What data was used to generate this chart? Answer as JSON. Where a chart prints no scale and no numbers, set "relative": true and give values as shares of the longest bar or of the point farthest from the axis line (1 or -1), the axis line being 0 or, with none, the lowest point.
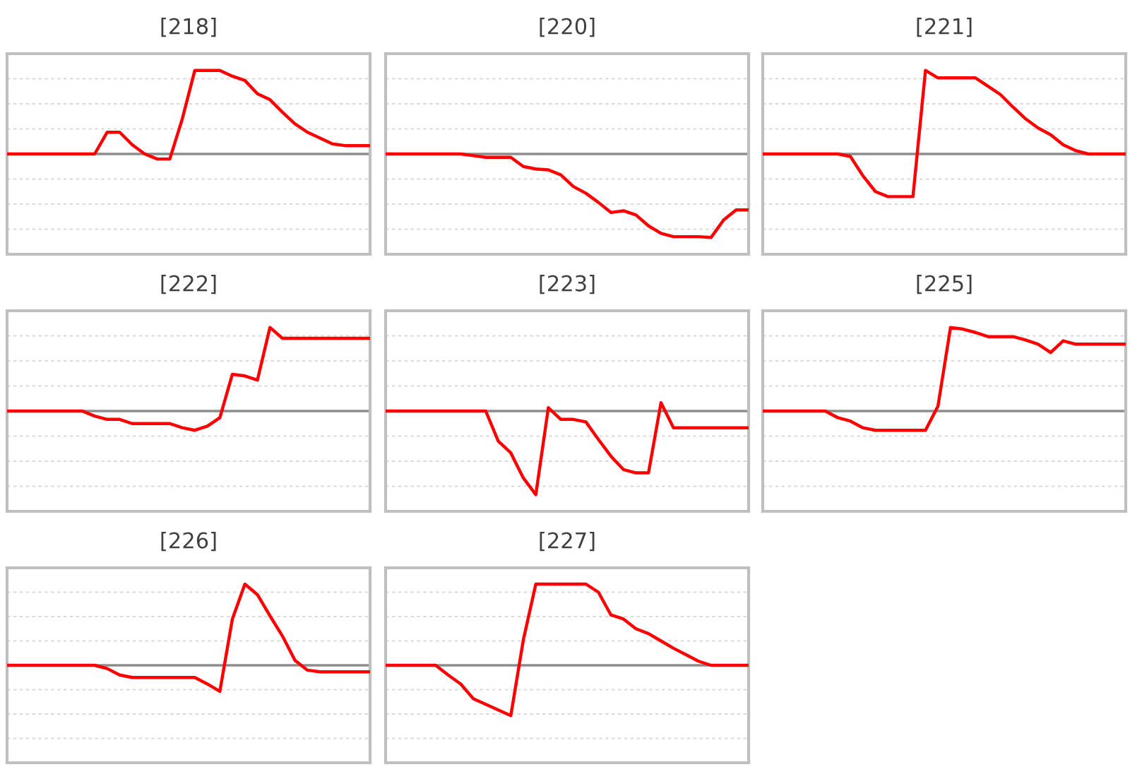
{
  "chart_data": [
    {
      "type": "line",
      "title": "[218]",
      "relative": true,
      "grid": "y",
      "categories": [
        null,
        null,
        null,
        null,
        null,
        null,
        null,
        null,
        null,
        null,
        null,
        null,
        null,
        null,
        null,
        null,
        null,
        null,
        null,
        null,
        null,
        null,
        null,
        null,
        null,
        null,
        null,
        null,
        null,
        null
      ],
      "series": [
        {
          "color": "#ff0000",
          "values": [
            0,
            0,
            0,
            0,
            0,
            0,
            0,
            0,
            0.26,
            0.26,
            0.11,
            0,
            -0.06,
            -0.06,
            0.42,
            1,
            1,
            1,
            0.93,
            0.88,
            0.72,
            0.65,
            0.5,
            0.36,
            0.26,
            0.19,
            0.12,
            0.1,
            0.1,
            0.1
          ]
        }
      ]
    },
    {
      "type": "line",
      "title": "[220]",
      "relative": true,
      "grid": "y",
      "categories": [
        null,
        null,
        null,
        null,
        null,
        null,
        null,
        null,
        null,
        null,
        null,
        null,
        null,
        null,
        null,
        null,
        null,
        null,
        null,
        null,
        null,
        null,
        null,
        null,
        null,
        null,
        null,
        null,
        null,
        null
      ],
      "series": [
        {
          "color": "#ff0000",
          "values": [
            0,
            0,
            0,
            0,
            0,
            0,
            0,
            -0.02,
            -0.04,
            -0.04,
            -0.04,
            -0.15,
            -0.18,
            -0.19,
            -0.25,
            -0.39,
            -0.47,
            -0.58,
            -0.7,
            -0.68,
            -0.73,
            -0.86,
            -0.95,
            -0.99,
            -0.99,
            -0.99,
            -1,
            -0.79,
            -0.67,
            -0.67
          ]
        }
      ]
    },
    {
      "type": "line",
      "title": "[221]",
      "relative": true,
      "grid": "y",
      "categories": [
        null,
        null,
        null,
        null,
        null,
        null,
        null,
        null,
        null,
        null,
        null,
        null,
        null,
        null,
        null,
        null,
        null,
        null,
        null,
        null,
        null,
        null,
        null,
        null,
        null,
        null,
        null,
        null,
        null,
        null
      ],
      "series": [
        {
          "color": "#ff0000",
          "values": [
            0,
            0,
            0,
            0,
            0,
            0,
            0,
            -0.03,
            -0.26,
            -0.45,
            -0.51,
            -0.51,
            -0.51,
            1,
            0.91,
            0.91,
            0.91,
            0.91,
            0.81,
            0.71,
            0.56,
            0.42,
            0.31,
            0.23,
            0.11,
            0.04,
            0,
            0,
            0,
            0
          ]
        }
      ]
    },
    {
      "type": "line",
      "title": "[222]",
      "relative": true,
      "grid": "y",
      "categories": [
        null,
        null,
        null,
        null,
        null,
        null,
        null,
        null,
        null,
        null,
        null,
        null,
        null,
        null,
        null,
        null,
        null,
        null,
        null,
        null,
        null,
        null,
        null,
        null,
        null,
        null,
        null,
        null,
        null,
        null
      ],
      "series": [
        {
          "color": "#ff0000",
          "values": [
            0,
            0,
            0,
            0,
            0,
            0,
            0,
            -0.06,
            -0.1,
            -0.1,
            -0.15,
            -0.15,
            -0.15,
            -0.15,
            -0.2,
            -0.23,
            -0.18,
            -0.08,
            0.44,
            0.42,
            0.37,
            1,
            0.87,
            0.87,
            0.87,
            0.87,
            0.87,
            0.87,
            0.87,
            0.87
          ]
        }
      ]
    },
    {
      "type": "line",
      "title": "[223]",
      "relative": true,
      "grid": "y",
      "categories": [
        null,
        null,
        null,
        null,
        null,
        null,
        null,
        null,
        null,
        null,
        null,
        null,
        null,
        null,
        null,
        null,
        null,
        null,
        null,
        null,
        null,
        null,
        null,
        null,
        null,
        null,
        null,
        null,
        null,
        null
      ],
      "series": [
        {
          "color": "#ff0000",
          "values": [
            0,
            0,
            0,
            0,
            0,
            0,
            0,
            0,
            0,
            -0.36,
            -0.5,
            -0.8,
            -1,
            0.04,
            -0.1,
            -0.1,
            -0.13,
            -0.34,
            -0.54,
            -0.7,
            -0.74,
            -0.74,
            0.1,
            -0.2,
            -0.2,
            -0.2,
            -0.2,
            -0.2,
            -0.2,
            -0.2
          ]
        }
      ]
    },
    {
      "type": "line",
      "title": "[225]",
      "relative": true,
      "grid": "y",
      "categories": [
        null,
        null,
        null,
        null,
        null,
        null,
        null,
        null,
        null,
        null,
        null,
        null,
        null,
        null,
        null,
        null,
        null,
        null,
        null,
        null,
        null,
        null,
        null,
        null,
        null,
        null,
        null,
        null,
        null,
        null
      ],
      "series": [
        {
          "color": "#ff0000",
          "values": [
            0,
            0,
            0,
            0,
            0,
            0,
            -0.08,
            -0.12,
            -0.2,
            -0.23,
            -0.23,
            -0.23,
            -0.23,
            -0.23,
            0.06,
            1,
            0.98,
            0.94,
            0.89,
            0.89,
            0.89,
            0.85,
            0.8,
            0.7,
            0.84,
            0.8,
            0.8,
            0.8,
            0.8,
            0.8
          ]
        }
      ]
    },
    {
      "type": "line",
      "title": "[226]",
      "relative": true,
      "grid": "y",
      "categories": [
        null,
        null,
        null,
        null,
        null,
        null,
        null,
        null,
        null,
        null,
        null,
        null,
        null,
        null,
        null,
        null,
        null,
        null,
        null,
        null,
        null,
        null,
        null,
        null,
        null,
        null,
        null,
        null,
        null,
        null
      ],
      "series": [
        {
          "color": "#ff0000",
          "values": [
            0,
            0,
            0,
            0,
            0,
            0,
            0,
            0,
            -0.04,
            -0.12,
            -0.15,
            -0.15,
            -0.15,
            -0.15,
            -0.15,
            -0.15,
            -0.23,
            -0.32,
            0.57,
            1,
            0.87,
            0.61,
            0.36,
            0.06,
            -0.06,
            -0.08,
            -0.08,
            -0.08,
            -0.08,
            -0.08
          ]
        }
      ]
    },
    {
      "type": "line",
      "title": "[227]",
      "relative": true,
      "grid": "y",
      "categories": [
        null,
        null,
        null,
        null,
        null,
        null,
        null,
        null,
        null,
        null,
        null,
        null,
        null,
        null,
        null,
        null,
        null,
        null,
        null,
        null,
        null,
        null,
        null,
        null,
        null,
        null,
        null,
        null,
        null,
        null
      ],
      "series": [
        {
          "color": "#ff0000",
          "values": [
            0,
            0,
            0,
            0,
            0,
            -0.12,
            -0.23,
            -0.41,
            -0.48,
            -0.55,
            -0.62,
            0.31,
            1,
            1,
            1,
            1,
            1,
            0.9,
            0.62,
            0.57,
            0.45,
            0.39,
            0.3,
            0.21,
            0.13,
            0.05,
            0,
            0,
            0,
            0
          ]
        }
      ]
    }
  ]
}
